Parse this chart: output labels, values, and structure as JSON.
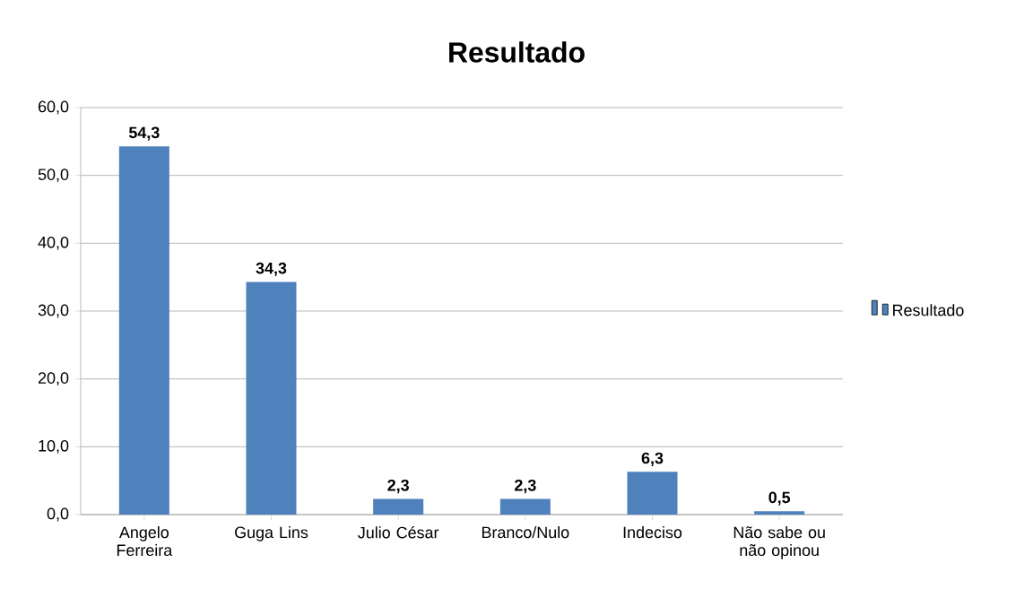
{
  "chart_data": {
    "type": "bar",
    "title": "Resultado",
    "categories": [
      "Angelo Ferreira",
      "Guga Lins",
      "Julio César",
      "Branco/Nulo",
      "Indeciso",
      "Não sabe ou não opinou"
    ],
    "series": [
      {
        "name": "Resultado",
        "color": "#4f81bd",
        "values": [
          54.3,
          34.3,
          2.3,
          2.3,
          6.3,
          0.5
        ],
        "value_labels": [
          "54,3",
          "34,3",
          "2,3",
          "2,3",
          "6,3",
          "0,5"
        ]
      }
    ],
    "ylim": [
      0,
      60
    ],
    "yticks": [
      {
        "value": 0,
        "label": "0,0"
      },
      {
        "value": 10,
        "label": "10,0"
      },
      {
        "value": 20,
        "label": "20,0"
      },
      {
        "value": 30,
        "label": "30,0"
      },
      {
        "value": 40,
        "label": "40,0"
      },
      {
        "value": 50,
        "label": "50,0"
      },
      {
        "value": 60,
        "label": "60,0"
      }
    ],
    "grid": "y",
    "legend": "right"
  }
}
